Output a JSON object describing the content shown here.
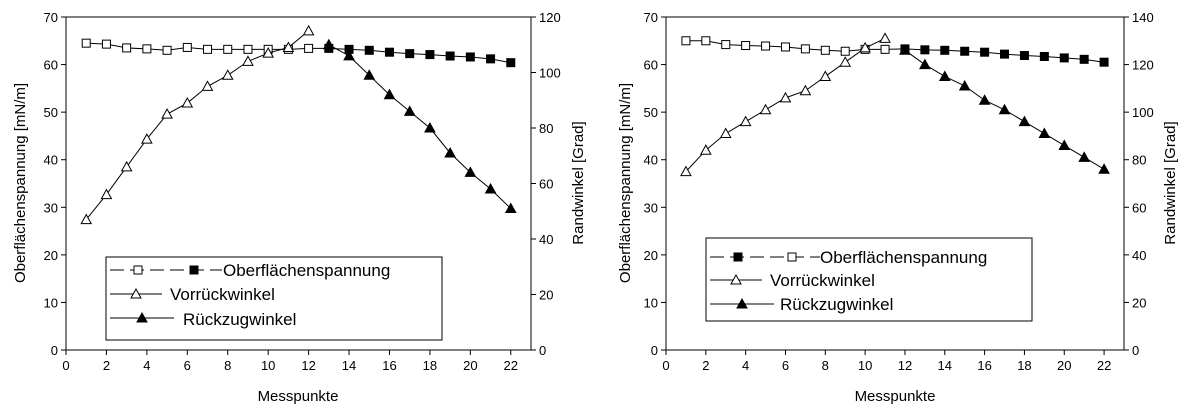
{
  "chart_data": [
    {
      "type": "line",
      "xlabel": "Messpunkte",
      "ylabel": "Oberflächenspannung [mN/m]",
      "y2label": "Randwinkel [Grad]",
      "xlim": [
        0,
        23
      ],
      "ylim": [
        0,
        70
      ],
      "y2lim": [
        0,
        120
      ],
      "xticks": [
        "0",
        "2",
        "4",
        "6",
        "8",
        "10",
        "12",
        "14",
        "16",
        "18",
        "20",
        "22"
      ],
      "yticks": [
        "0",
        "10",
        "20",
        "30",
        "40",
        "50",
        "60",
        "70"
      ],
      "y2ticks": [
        "0",
        "20",
        "40",
        "60",
        "80",
        "100",
        "120"
      ],
      "grid": false,
      "legend_position": "bottom-center",
      "series": [
        {
          "name": "Oberflächenspannung",
          "legend_label": "Oberflächenspannung",
          "axis": "left",
          "marker": "square",
          "legend_markers": [
            "square-open",
            "square-filled"
          ],
          "x": [
            1,
            2,
            3,
            4,
            5,
            6,
            7,
            8,
            9,
            10,
            11,
            12,
            13,
            14,
            15,
            16,
            17,
            18,
            19,
            20,
            21,
            22
          ],
          "y": [
            64.5,
            64.3,
            63.5,
            63.3,
            63.0,
            63.6,
            63.2,
            63.2,
            63.2,
            63.2,
            63.2,
            63.4,
            63.4,
            63.2,
            63.0,
            62.6,
            62.3,
            62.1,
            61.8,
            61.6,
            61.2,
            60.4
          ],
          "filled": [
            false,
            false,
            false,
            false,
            false,
            false,
            false,
            false,
            false,
            false,
            false,
            false,
            true,
            true,
            true,
            true,
            true,
            true,
            true,
            true,
            true,
            true
          ]
        },
        {
          "name": "Vorrückwinkel",
          "legend_label": "Vorrückwinkel",
          "axis": "right",
          "marker": "triangle-open",
          "x": [
            1,
            2,
            3,
            4,
            5,
            6,
            7,
            8,
            9,
            10,
            11,
            12
          ],
          "y": [
            47,
            56,
            66,
            76,
            85,
            89,
            95,
            99,
            104,
            107,
            109,
            115
          ]
        },
        {
          "name": "Rückzugwinkel",
          "legend_label": "Rückzugwinkel",
          "axis": "right",
          "marker": "triangle-filled",
          "x": [
            13,
            14,
            15,
            16,
            17,
            18,
            19,
            20,
            21,
            22
          ],
          "y": [
            110,
            106,
            99,
            92,
            86,
            80,
            71,
            64,
            58,
            51
          ]
        }
      ]
    },
    {
      "type": "line",
      "xlabel": "Messpunkte",
      "ylabel": "Oberflächenspannung [mN/m]",
      "y2label": "Randwinkel [Grad]",
      "xlim": [
        0,
        23
      ],
      "ylim": [
        0,
        70
      ],
      "y2lim": [
        0,
        140
      ],
      "xticks": [
        "0",
        "2",
        "4",
        "6",
        "8",
        "10",
        "12",
        "14",
        "16",
        "18",
        "20",
        "22"
      ],
      "yticks": [
        "0",
        "10",
        "20",
        "30",
        "40",
        "50",
        "60",
        "70"
      ],
      "y2ticks": [
        "0",
        "20",
        "40",
        "60",
        "80",
        "100",
        "120",
        "140"
      ],
      "grid": false,
      "legend_position": "bottom-center",
      "series": [
        {
          "name": "Oberflächenspannung",
          "legend_label": "Oberflächenspannung",
          "axis": "left",
          "marker": "square",
          "legend_markers": [
            "square-filled",
            "square-open"
          ],
          "x": [
            1,
            2,
            3,
            4,
            5,
            6,
            7,
            8,
            9,
            10,
            11,
            12,
            13,
            14,
            15,
            16,
            17,
            18,
            19,
            20,
            21,
            22
          ],
          "y": [
            65.0,
            65.0,
            64.2,
            64.0,
            63.9,
            63.7,
            63.3,
            63.0,
            62.8,
            63.2,
            63.2,
            63.3,
            63.1,
            63.0,
            62.8,
            62.6,
            62.2,
            61.9,
            61.7,
            61.4,
            61.1,
            60.5
          ],
          "filled": [
            false,
            false,
            false,
            false,
            false,
            false,
            false,
            false,
            false,
            false,
            false,
            true,
            true,
            true,
            true,
            true,
            true,
            true,
            true,
            true,
            true,
            true
          ]
        },
        {
          "name": "Vorrückwinkel",
          "legend_label": "Vorrückwinkel",
          "axis": "right",
          "marker": "triangle-open",
          "x": [
            1,
            2,
            3,
            4,
            5,
            6,
            7,
            8,
            9,
            10,
            11
          ],
          "y": [
            75,
            84,
            91,
            96,
            101,
            106,
            109,
            115,
            121,
            127,
            131
          ]
        },
        {
          "name": "Rückzugwinkel",
          "legend_label": "Rückzugwinkel",
          "axis": "right",
          "marker": "triangle-filled",
          "x": [
            12,
            13,
            14,
            15,
            16,
            17,
            18,
            19,
            20,
            21,
            22
          ],
          "y": [
            126,
            120,
            115,
            111,
            105,
            101,
            96,
            91,
            86,
            81,
            76
          ]
        }
      ]
    }
  ]
}
